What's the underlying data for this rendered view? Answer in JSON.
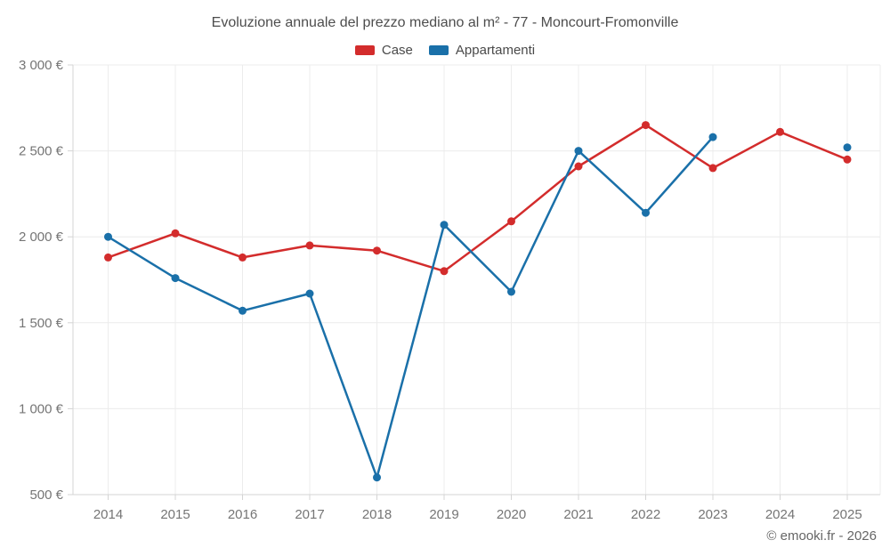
{
  "header": {
    "title": "Evoluzione annuale del prezzo mediano al m² - 77 - Moncourt-Fromonville"
  },
  "footer": {
    "attribution": "© emooki.fr - 2026"
  },
  "style": {
    "grid_color": "#ececec",
    "axis_color": "#d4d4d4",
    "tick_text_color": "#757575",
    "title_color": "#4d4d4d",
    "case_color": "#d32c2c",
    "appartamenti_color": "#1a70a9"
  },
  "chart_data": {
    "type": "line",
    "title": "Evoluzione annuale del prezzo mediano al m² - 77 - Moncourt-Fromonville",
    "categories": [
      "2014",
      "2015",
      "2016",
      "2017",
      "2018",
      "2019",
      "2020",
      "2021",
      "2022",
      "2023",
      "2024",
      "2025"
    ],
    "series": [
      {
        "name": "Case",
        "color": "#d32c2c",
        "values": [
          1880,
          2020,
          1880,
          1950,
          1920,
          1800,
          2090,
          2410,
          2650,
          2400,
          2610,
          2450
        ]
      },
      {
        "name": "Appartamenti",
        "color": "#1a70a9",
        "values": [
          2000,
          1760,
          1570,
          1670,
          600,
          2070,
          1680,
          2500,
          2140,
          2580,
          null,
          2520
        ]
      }
    ],
    "xlabel": "",
    "ylabel": "",
    "ylim": [
      500,
      3000
    ],
    "ytick_step": 500,
    "ytick_labels": [
      "500 €",
      "1 000 €",
      "1 500 €",
      "2 000 €",
      "2 500 €",
      "3 000 €"
    ],
    "grid": true,
    "legend_position": "top",
    "marker": "circle"
  }
}
